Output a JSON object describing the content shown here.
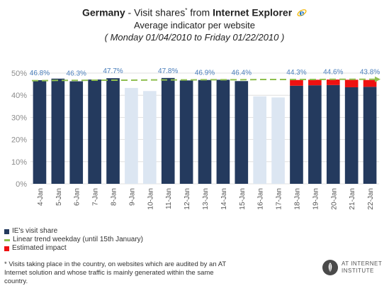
{
  "header": {
    "title_country": "Germany",
    "title_middle": " - Visit shares",
    "title_star": "*",
    "title_from": " from ",
    "title_browser": "Internet Explorer",
    "subtitle": "Average indicator per website",
    "date_range": "( Monday 01/04/2010 to Friday 01/22/2010 )",
    "icon": "internet-explorer-icon"
  },
  "chart_data": {
    "type": "bar",
    "categories": [
      "4-Jan",
      "5-Jan",
      "6-Jan",
      "7-Jan",
      "8-Jan",
      "9-Jan",
      "10-Jan",
      "11-Jan",
      "12-Jan",
      "13-Jan",
      "14-Jan",
      "15-Jan",
      "16-Jan",
      "17-Jan",
      "18-Jan",
      "19-Jan",
      "20-Jan",
      "21-Jan",
      "22-Jan"
    ],
    "series": [
      {
        "name": "IE's visit share",
        "values": [
          46.8,
          47.5,
          46.3,
          47.1,
          47.7,
          43.3,
          41.9,
          47.8,
          46.7,
          46.9,
          47.0,
          46.4,
          39.5,
          39.0,
          44.3,
          44.5,
          44.6,
          43.6,
          43.8
        ]
      },
      {
        "name": "Estimated impact",
        "values": [
          0,
          0,
          0,
          0,
          0,
          0,
          0,
          0,
          0,
          0,
          0,
          0,
          0,
          0,
          2.6,
          2.5,
          2.5,
          3.4,
          3.1
        ]
      },
      {
        "name": "Linear trend weekday (until 15th January)",
        "values": [
          46.6,
          46.7,
          46.7,
          46.8,
          46.8,
          46.8,
          46.9,
          46.9,
          46.9,
          47.0,
          47.0,
          47.0,
          47.1,
          47.1,
          47.1,
          47.1,
          47.2,
          47.2,
          47.2
        ]
      }
    ],
    "weekend": [
      false,
      false,
      false,
      false,
      false,
      true,
      true,
      false,
      false,
      false,
      false,
      false,
      true,
      true,
      false,
      false,
      false,
      false,
      false
    ],
    "data_labels": [
      "46.8%",
      "",
      "46.3%",
      "",
      "47.7%",
      "",
      "",
      "47.8%",
      "",
      "46.9%",
      "",
      "46.4%",
      "",
      "",
      "44.3%",
      "",
      "44.6%",
      "",
      "43.8%"
    ],
    "y_ticks": [
      "0%",
      "10%",
      "20%",
      "30%",
      "40%",
      "50%"
    ],
    "ylim": [
      0,
      50
    ],
    "grid": true,
    "legend_position": "bottom-left",
    "colors": {
      "weekday_bar": "#243a5e",
      "weekend_bar": "#dce6f2",
      "impact": "#ee1111",
      "trend": "#8fbf4f",
      "data_label": "#4a7ebb",
      "axis_text": "#8c8c8c",
      "grid": "#d9d9d9"
    }
  },
  "footnote": {
    "star": "*",
    "text": "Visits taking place in the country, on websites which are audited by an AT Internet solution and whose traffic is mainly generated within the same country."
  },
  "logo": {
    "line1": "AT INTERNET",
    "line2": "INSTITUTE",
    "icon": "wheat-leaf-icon"
  }
}
